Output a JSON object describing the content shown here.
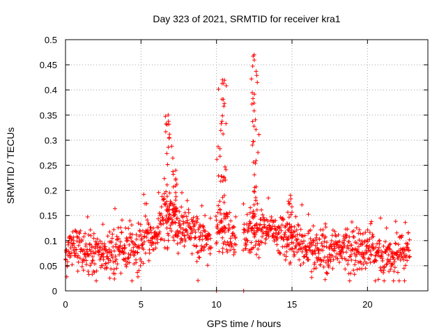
{
  "chart_data": {
    "type": "scatter",
    "title": "Day 323 of 2021, SRMTID for receiver kra1",
    "xlabel": "GPS time / hours",
    "ylabel": "SRMTID / TECUs",
    "xlim": [
      0,
      24
    ],
    "ylim": [
      0,
      0.5
    ],
    "xticks": [
      0,
      5,
      10,
      15,
      20
    ],
    "xtick_labels": [
      "0",
      "5",
      "10",
      "15",
      "20"
    ],
    "yticks": [
      0,
      0.05,
      0.1,
      0.15,
      0.2,
      0.25,
      0.3,
      0.35,
      0.4,
      0.45,
      0.5
    ],
    "ytick_labels": [
      "0",
      "0.05",
      "0.1",
      "0.15",
      "0.2",
      "0.25",
      "0.3",
      "0.35",
      "0.4",
      "0.45",
      "0.5"
    ],
    "grid": true,
    "marker": "+",
    "series": [
      {
        "name": "SRMTID kra1",
        "color": "#ff0000",
        "profile": [
          [
            0.0,
            0.07
          ],
          [
            0.5,
            0.09
          ],
          [
            1.0,
            0.08
          ],
          [
            1.5,
            0.08
          ],
          [
            2.0,
            0.07
          ],
          [
            2.5,
            0.07
          ],
          [
            3.0,
            0.08
          ],
          [
            3.5,
            0.08
          ],
          [
            4.0,
            0.08
          ],
          [
            4.5,
            0.08
          ],
          [
            5.0,
            0.09
          ],
          [
            5.5,
            0.1
          ],
          [
            6.0,
            0.11
          ],
          [
            6.5,
            0.15
          ],
          [
            7.0,
            0.14
          ],
          [
            7.5,
            0.13
          ],
          [
            8.0,
            0.12
          ],
          [
            8.5,
            0.12
          ],
          [
            9.0,
            0.1
          ],
          [
            9.6,
            0.1
          ],
          [
            10.0,
            0.12
          ],
          [
            10.5,
            0.12
          ],
          [
            11.0,
            0.11
          ],
          [
            12.0,
            0.11
          ],
          [
            12.5,
            0.13
          ],
          [
            13.0,
            0.12
          ],
          [
            14.0,
            0.11
          ],
          [
            15.0,
            0.1
          ],
          [
            15.5,
            0.09
          ],
          [
            16.5,
            0.08
          ],
          [
            17.5,
            0.07
          ],
          [
            19.0,
            0.08
          ],
          [
            20.0,
            0.08
          ],
          [
            21.0,
            0.07
          ],
          [
            22.0,
            0.07
          ],
          [
            22.8,
            0.08
          ]
        ],
        "peaks": [
          {
            "x": 6.8,
            "max": 0.35
          },
          {
            "x": 7.3,
            "max": 0.24
          },
          {
            "x": 10.4,
            "max": 0.42
          },
          {
            "x": 12.5,
            "max": 0.47
          },
          {
            "x": 14.9,
            "max": 0.19
          }
        ],
        "zero_points": [
          [
            10.0,
            0.0
          ],
          [
            11.8,
            0.0
          ]
        ]
      }
    ]
  }
}
